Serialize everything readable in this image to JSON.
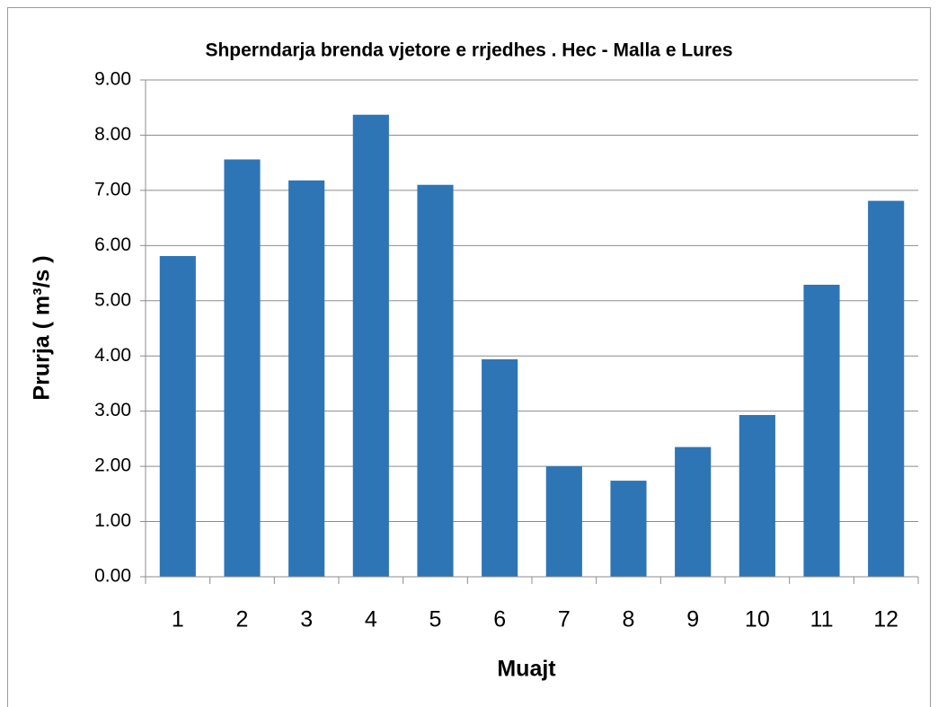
{
  "chart_data": {
    "type": "bar",
    "title": "Shperndarja brenda vjetore e rrjedhes . Hec - Malla e Lures",
    "x_label": "Muajt",
    "y_label": "Prurja  ( m³/s )",
    "categories": [
      "1",
      "2",
      "3",
      "4",
      "5",
      "6",
      "7",
      "8",
      "9",
      "10",
      "11",
      "12"
    ],
    "values": [
      5.81,
      7.56,
      7.18,
      8.37,
      7.1,
      3.94,
      2.0,
      1.74,
      2.35,
      2.93,
      5.29,
      6.81
    ],
    "color": "#2e75b6",
    "ylim": [
      0,
      9
    ],
    "yticks": [
      {
        "value": 0,
        "label": "0.00"
      },
      {
        "value": 1,
        "label": "1.00"
      },
      {
        "value": 2,
        "label": "2.00"
      },
      {
        "value": 3,
        "label": "3.00"
      },
      {
        "value": 4,
        "label": "4.00"
      },
      {
        "value": 5,
        "label": "5.00"
      },
      {
        "value": 6,
        "label": "6.00"
      },
      {
        "value": 7,
        "label": "7.00"
      },
      {
        "value": 8,
        "label": "8.00"
      },
      {
        "value": 9,
        "label": "9.00"
      }
    ],
    "grid": true
  }
}
